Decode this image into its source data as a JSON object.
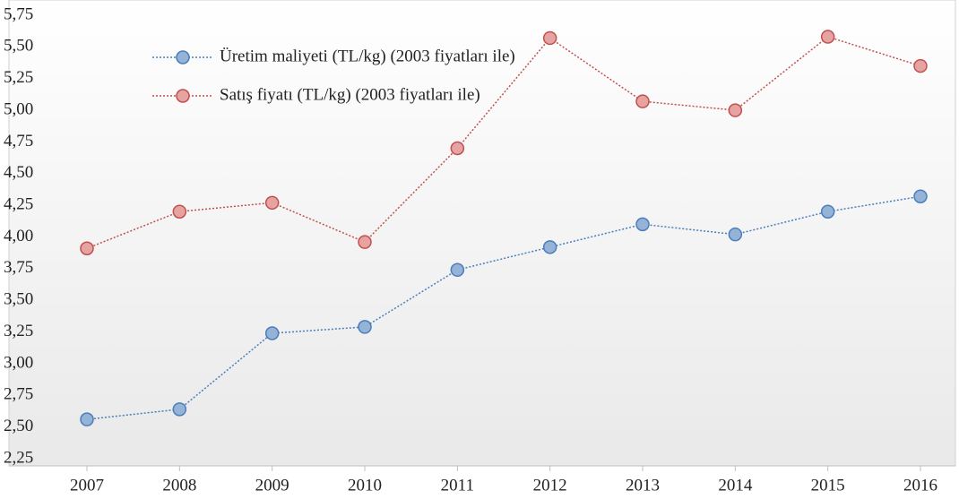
{
  "chart_data": {
    "type": "line",
    "x": [
      2007,
      2008,
      2009,
      2010,
      2011,
      2012,
      2013,
      2014,
      2015,
      2016
    ],
    "series": [
      {
        "name": "Üretim maliyeti (TL/kg) (2003 fiyatları ile)",
        "color": "#4a7ebb",
        "fill": "#95b3d7",
        "values": [
          2.56,
          2.64,
          3.24,
          3.29,
          3.74,
          3.92,
          4.1,
          4.02,
          4.2,
          4.32
        ]
      },
      {
        "name": "Satış fiyatı (TL/kg) (2003 fiyatları ile)",
        "color": "#c0504d",
        "fill": "#e6a3a1",
        "values": [
          3.91,
          4.2,
          4.27,
          3.96,
          4.7,
          5.57,
          5.07,
          5.0,
          5.58,
          5.35
        ]
      }
    ],
    "xlim": [
      2007,
      2016
    ],
    "xticks": [
      2007,
      2008,
      2009,
      2010,
      2011,
      2012,
      2013,
      2014,
      2015,
      2016
    ],
    "ylim": [
      2.25,
      5.75
    ],
    "yticks": [
      {
        "value": 2.25,
        "label": "2,25"
      },
      {
        "value": 2.5,
        "label": "2,50"
      },
      {
        "value": 2.75,
        "label": "2,75"
      },
      {
        "value": 3.0,
        "label": "3,00"
      },
      {
        "value": 3.25,
        "label": "3,25"
      },
      {
        "value": 3.5,
        "label": "3,50"
      },
      {
        "value": 3.75,
        "label": "3,75"
      },
      {
        "value": 4.0,
        "label": "4,00"
      },
      {
        "value": 4.25,
        "label": "4,25"
      },
      {
        "value": 4.5,
        "label": "4,50"
      },
      {
        "value": 4.75,
        "label": "4,75"
      },
      {
        "value": 5.0,
        "label": "5,00"
      },
      {
        "value": 5.25,
        "label": "5,25"
      },
      {
        "value": 5.5,
        "label": "5,50"
      },
      {
        "value": 5.75,
        "label": "5,75"
      }
    ],
    "grid": false,
    "legend": "upper left"
  }
}
